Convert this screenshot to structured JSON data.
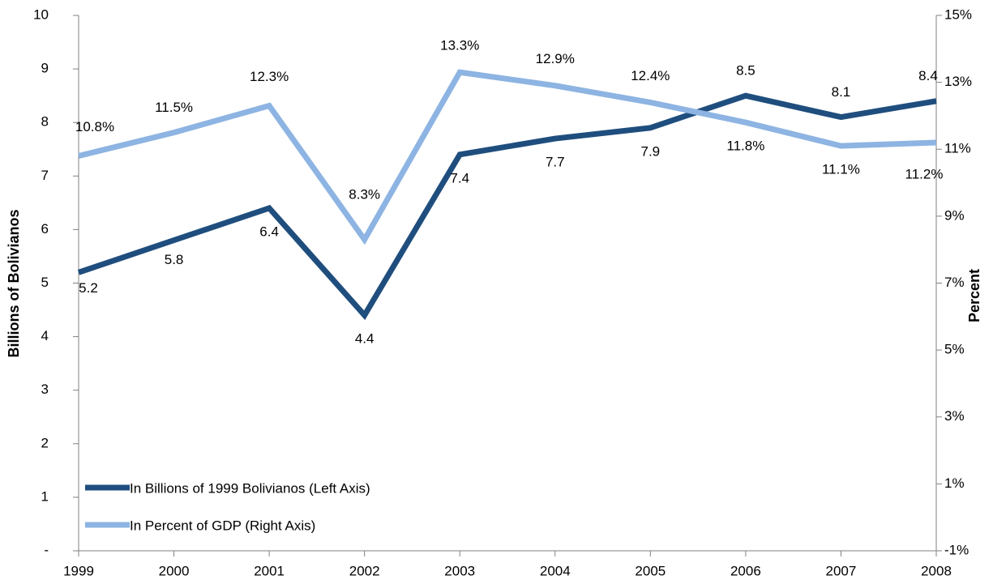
{
  "chart_data": {
    "type": "line",
    "y_label": "Billions of Bolivianos",
    "y2_label": "Percent",
    "categories": [
      "1999",
      "2000",
      "2001",
      "2002",
      "2003",
      "2004",
      "2005",
      "2006",
      "2007",
      "2008"
    ],
    "series": [
      {
        "name": "In Billions of 1999 Bolivianos (Left Axis)",
        "color": "#1f4e7e",
        "values": [
          5.2,
          5.8,
          6.4,
          4.4,
          7.4,
          7.7,
          7.9,
          8.5,
          8.1,
          8.4
        ]
      },
      {
        "name": "In Percent of GDP (Right Axis)",
        "color": "#8db4e2",
        "axis": "y2",
        "values": [
          10.8,
          11.5,
          12.3,
          8.3,
          13.3,
          12.9,
          12.4,
          11.8,
          11.1,
          11.2
        ],
        "value_labels": [
          "10.8%",
          "11.5%",
          "12.3%",
          "8.3%",
          "13.3%",
          "12.9%",
          "12.4%",
          "11.8%",
          "11.1%",
          "11.2%"
        ]
      }
    ],
    "ylim": [
      0,
      10
    ],
    "yticks": [
      {
        "value": 0,
        "label": "-"
      },
      1,
      2,
      3,
      4,
      5,
      6,
      7,
      8,
      9,
      10
    ],
    "y2lim": [
      -1,
      15
    ],
    "y2ticks": [
      {
        "value": -1,
        "label": "-1%"
      },
      {
        "value": 1,
        "label": "1%"
      },
      {
        "value": 3,
        "label": "3%"
      },
      {
        "value": 5,
        "label": "5%"
      },
      {
        "value": 7,
        "label": "7%"
      },
      {
        "value": 9,
        "label": "9%"
      },
      {
        "value": 11,
        "label": "11%"
      },
      {
        "value": 13,
        "label": "13%"
      },
      {
        "value": 15,
        "label": "15%"
      }
    ],
    "legend": "lower left"
  }
}
